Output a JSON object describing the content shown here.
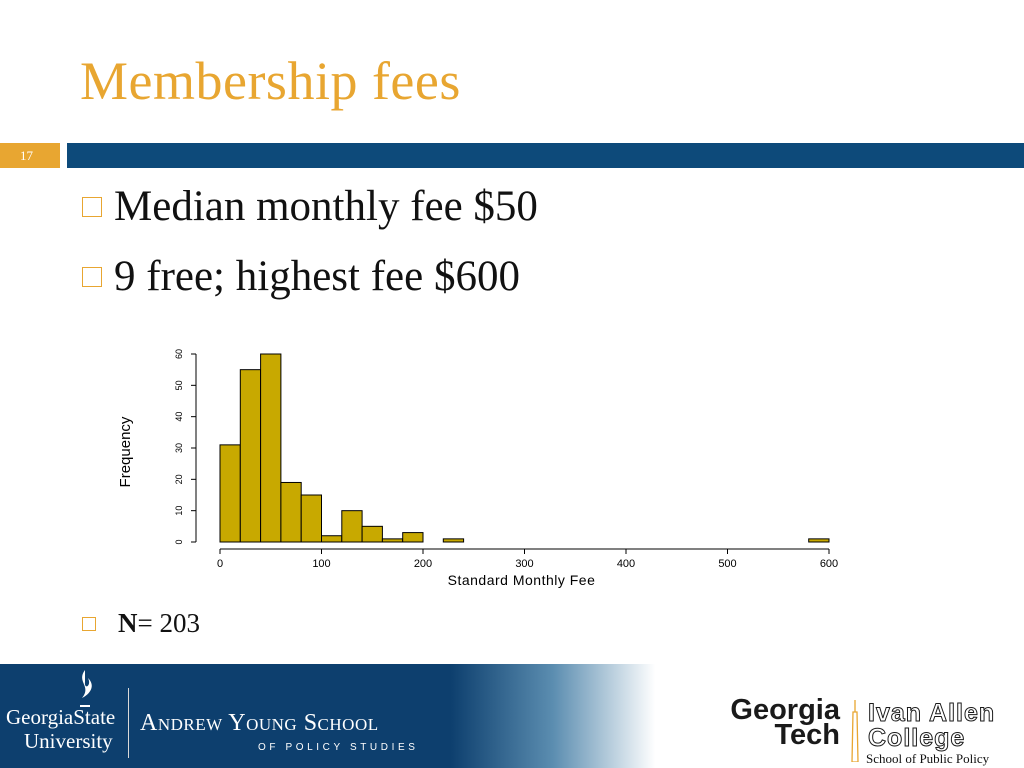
{
  "slide": {
    "title": "Membership fees",
    "number": "17",
    "bullets": [
      "Median monthly fee $50",
      "9 free; highest fee $600"
    ],
    "n_label": "N",
    "n_value": " = 203"
  },
  "chart_data": {
    "type": "bar",
    "xlabel": "Standard Monthly Fee",
    "ylabel": "Frequency",
    "bin_edges": [
      0,
      20,
      40,
      60,
      80,
      100,
      120,
      140,
      160,
      180,
      200,
      220,
      240
    ],
    "values": [
      31,
      55,
      60,
      19,
      15,
      2,
      10,
      5,
      1,
      3,
      0,
      1
    ],
    "outlier": {
      "bin": [
        580,
        600
      ],
      "value": 1
    },
    "xticks": [
      0,
      100,
      200,
      300,
      400,
      500,
      600
    ],
    "yticks": [
      0,
      10,
      20,
      30,
      40,
      50,
      60
    ],
    "xlim": [
      0,
      600
    ],
    "ylim": [
      0,
      60
    ],
    "bar_color": "#c8a900"
  },
  "footer": {
    "gsu_line1": "GeorgiaState",
    "gsu_line2": "University",
    "ays_name": "Andrew Young School",
    "ays_sub": "OF POLICY STUDIES",
    "gt_line1": "Georgia",
    "gt_line2": "Tech",
    "iac_line1": "Ivan Allen",
    "iac_line2": "College",
    "spp": "School of Public Policy"
  }
}
